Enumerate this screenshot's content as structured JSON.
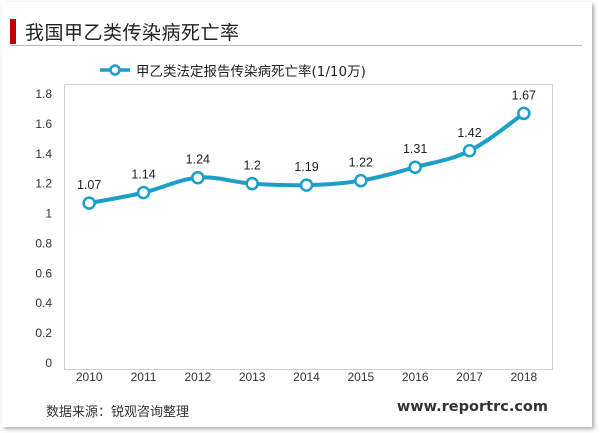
{
  "header": {
    "title": "我国甲乙类传染病死亡率"
  },
  "footer": {
    "source": "数据来源：锐观咨询整理",
    "website": "www.reportrc.com"
  },
  "colors": {
    "series": "#1b9ec8",
    "accent": "#c00000"
  },
  "chart_data": {
    "type": "line",
    "title": "我国甲乙类传染病死亡率",
    "xlabel": "",
    "ylabel": "",
    "categories": [
      "2010",
      "2011",
      "2012",
      "2013",
      "2014",
      "2015",
      "2016",
      "2017",
      "2018"
    ],
    "series": [
      {
        "name": "甲乙类法定报告传染病死亡率(1/10万)",
        "values": [
          1.07,
          1.14,
          1.24,
          1.2,
          1.19,
          1.22,
          1.31,
          1.42,
          1.67
        ],
        "labels": [
          "1.07",
          "1.14",
          "1.24",
          "1.2",
          "1.19",
          "1.22",
          "1.31",
          "1.42",
          "1.67"
        ]
      }
    ],
    "ylim": [
      0,
      1.8
    ],
    "yticks": [
      "0",
      "0.2",
      "0.4",
      "0.6",
      "0.8",
      "1",
      "1.2",
      "1.4",
      "1.6",
      "1.8"
    ],
    "grid": false,
    "legend": "top-left"
  }
}
